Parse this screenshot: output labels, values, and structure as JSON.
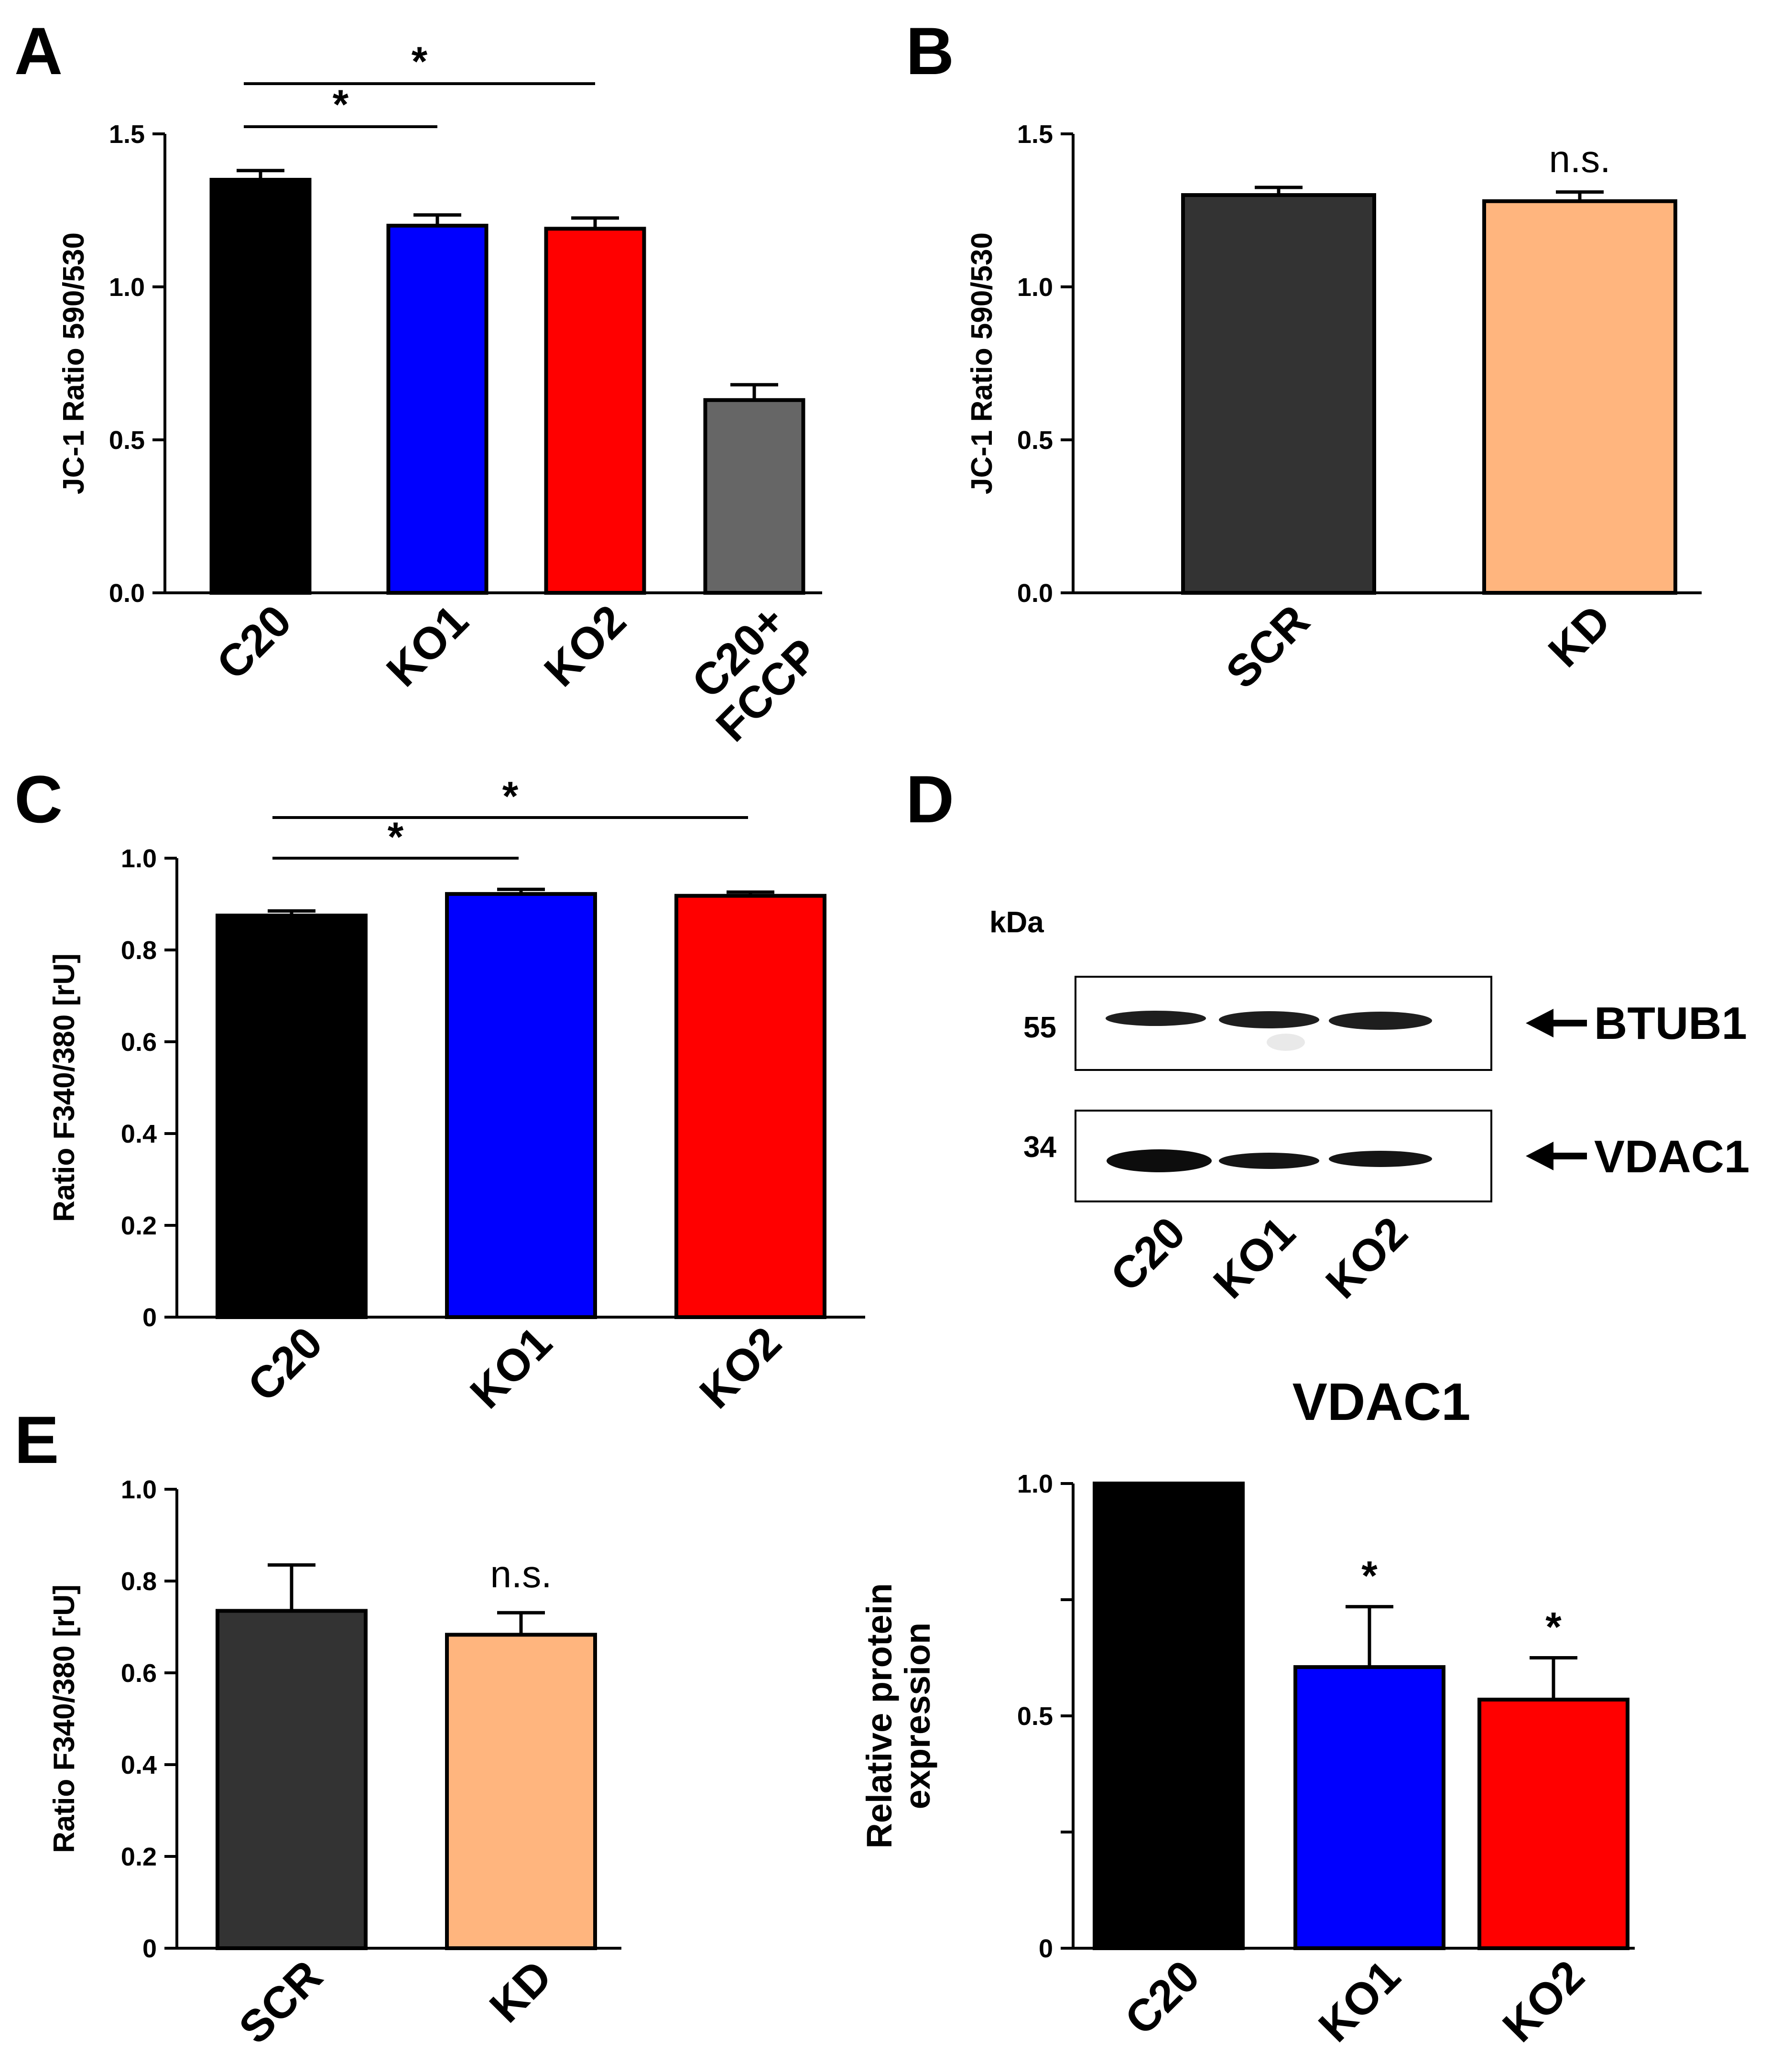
{
  "chart_data": [
    {
      "panel": "A",
      "type": "bar",
      "categories": [
        "C20",
        "KO1",
        "KO2",
        "C20+\nFCCP"
      ],
      "values": [
        1.35,
        1.2,
        1.19,
        0.63
      ],
      "errors": [
        0.03,
        0.035,
        0.035,
        0.05
      ],
      "colors": [
        "#000000",
        "#0000ff",
        "#ff0000",
        "#666666"
      ],
      "ylabel": "JC-1 Ratio 590/530",
      "ylim": [
        0,
        1.5
      ],
      "yticks": [
        0.0,
        0.5,
        1.0,
        1.5
      ],
      "ytick_labels": [
        "0.0",
        "0.5",
        "1.0",
        "1.5"
      ],
      "significance": [
        {
          "from": "C20",
          "to": "KO1",
          "label": "*"
        },
        {
          "from": "C20",
          "to": "KO2",
          "label": "*"
        }
      ]
    },
    {
      "panel": "B",
      "type": "bar",
      "categories": [
        "SCR",
        "KD"
      ],
      "values": [
        1.3,
        1.28
      ],
      "errors": [
        0.025,
        0.03
      ],
      "colors": [
        "#333333",
        "#ffb57e"
      ],
      "ylabel": "JC-1 Ratio 590/530",
      "ylim": [
        0,
        1.5
      ],
      "yticks": [
        0.0,
        0.5,
        1.0,
        1.5
      ],
      "ytick_labels": [
        "0.0",
        "0.5",
        "1.0",
        "1.5"
      ],
      "annotations": [
        {
          "over": "KD",
          "label": "n.s."
        }
      ]
    },
    {
      "panel": "C",
      "type": "bar",
      "categories": [
        "C20",
        "KO1",
        "KO2"
      ],
      "values": [
        0.875,
        0.922,
        0.918
      ],
      "errors": [
        0.01,
        0.01,
        0.008
      ],
      "colors": [
        "#000000",
        "#0000ff",
        "#ff0000"
      ],
      "ylabel": "Ratio F340/380 [rU]",
      "ylim": [
        0,
        1.0
      ],
      "yticks": [
        0,
        0.2,
        0.4,
        0.6,
        0.8,
        1.0
      ],
      "ytick_labels": [
        "0",
        "0.2",
        "0.4",
        "0.6",
        "0.8",
        "1.0"
      ],
      "significance": [
        {
          "from": "C20",
          "to": "KO1",
          "label": "*"
        },
        {
          "from": "C20",
          "to": "KO2",
          "label": "*"
        }
      ]
    },
    {
      "panel": "E",
      "type": "bar",
      "categories": [
        "SCR",
        "KD"
      ],
      "values": [
        0.735,
        0.683
      ],
      "errors": [
        0.1,
        0.048
      ],
      "colors": [
        "#333333",
        "#ffb57e"
      ],
      "ylabel": "Ratio F340/380 [rU]",
      "ylim": [
        0,
        1.0
      ],
      "yticks": [
        0,
        0.2,
        0.4,
        0.6,
        0.8,
        1.0
      ],
      "ytick_labels": [
        "0",
        "0.2",
        "0.4",
        "0.6",
        "0.8",
        "1.0"
      ],
      "annotations": [
        {
          "over": "KD",
          "label": "n.s."
        }
      ]
    },
    {
      "panel": "D",
      "type": "bar",
      "title": "VDAC1",
      "categories": [
        "C20",
        "KO1",
        "KO2"
      ],
      "values": [
        1.0,
        0.605,
        0.535
      ],
      "errors": [
        0,
        0.13,
        0.09
      ],
      "colors": [
        "#000000",
        "#0000ff",
        "#ff0000"
      ],
      "ylabel": "Relative protein\nexpression",
      "ylim": [
        0,
        1.0
      ],
      "yticks": [
        0,
        0.25,
        0.5,
        0.75,
        1.0
      ],
      "ytick_labels": [
        "0",
        "",
        "0.5",
        "",
        "1.0"
      ],
      "annotations": [
        {
          "over": "KO1",
          "label": "*"
        },
        {
          "over": "KO2",
          "label": "*"
        }
      ]
    }
  ],
  "panel_labels": [
    "A",
    "B",
    "C",
    "D",
    "E"
  ],
  "blot": {
    "kda_label": "kDa",
    "markers": [
      "55",
      "34"
    ],
    "proteins": [
      "BTUB1",
      "VDAC1"
    ],
    "lanes": [
      "C20",
      "KO1",
      "KO2"
    ]
  }
}
